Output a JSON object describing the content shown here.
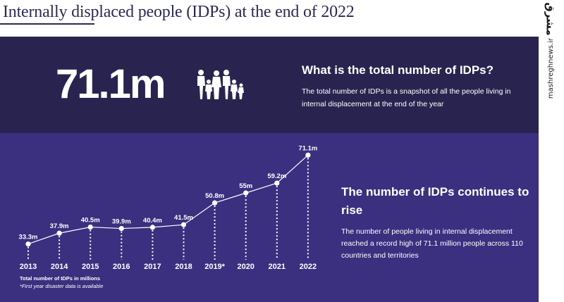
{
  "header": {
    "title": "Internally displaced people (IDPs) at the end of 2022"
  },
  "watermark": {
    "logo": "مشرق",
    "text": "mashreghnews.ir"
  },
  "summary": {
    "big_number": "71.1m",
    "heading": "What is the total number of IDPs?",
    "text": "The total number of IDPs is a snapshot of all the people living in internal displacement at the end of the year",
    "icon": "family-people-icon"
  },
  "trend": {
    "heading": "The number of IDPs continues to rise",
    "text": "The number of people living in internal displacement reached a record high of 71.1 million people across 110 countries and territories"
  },
  "colors": {
    "top_panel": "#29244f",
    "bottom_panel": "#3b2f7f",
    "title": "#2b2a55",
    "line": "#ffffff"
  },
  "chart_data": {
    "type": "line",
    "title": "Total number of IDPs in millions",
    "footnote": "*First year disaster data is available",
    "categories": [
      "2013",
      "2014",
      "2015",
      "2016",
      "2017",
      "2018",
      "2019*",
      "2020",
      "2021",
      "2022"
    ],
    "values": [
      33.3,
      37.9,
      40.5,
      39.9,
      40.4,
      41.5,
      50.8,
      55,
      59.2,
      71.1
    ],
    "labels": [
      "33.3m",
      "37.9m",
      "40.5m",
      "39.9m",
      "40.4m",
      "41.5m",
      "50.8m",
      "55m",
      "59.2m",
      "71.1m"
    ],
    "ylim": [
      26,
      73
    ],
    "xlabel": "",
    "ylabel": ""
  }
}
